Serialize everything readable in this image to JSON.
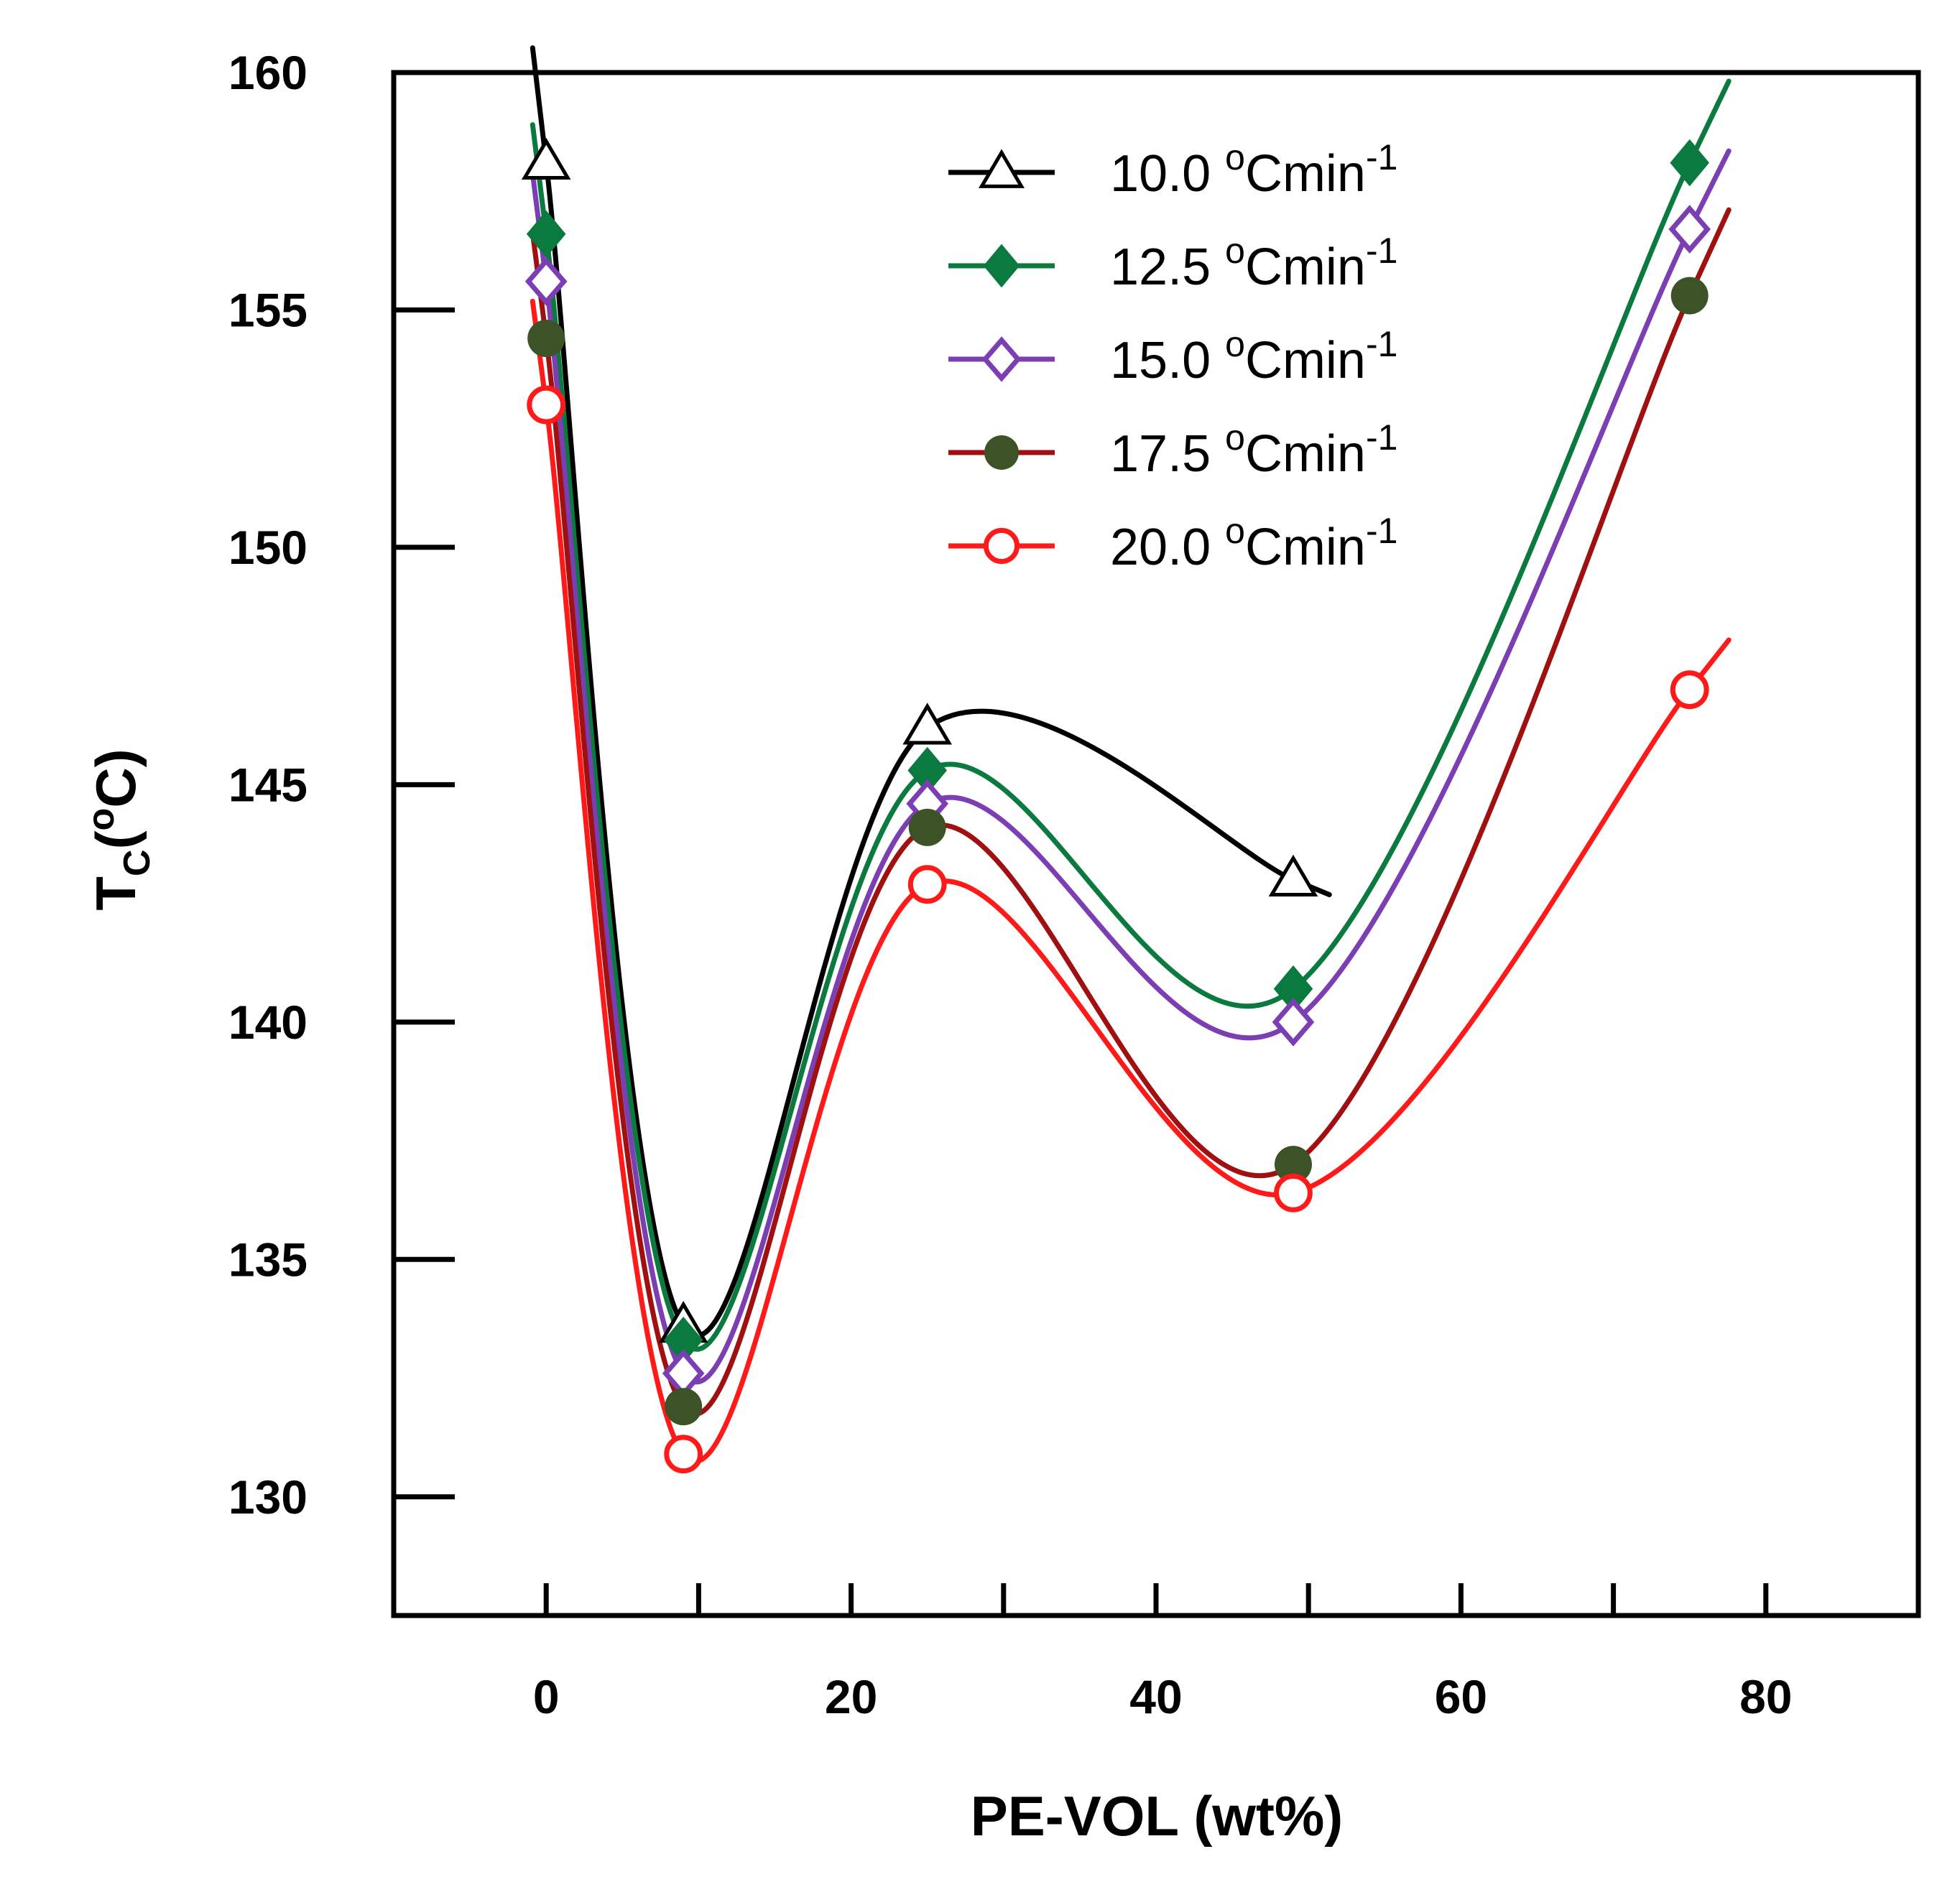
{
  "chart_data": {
    "type": "line",
    "xlabel": "PE-VOL (wt%)",
    "ylabel": {
      "main": "T",
      "sub": "C",
      "open": "(",
      "sup": "o",
      "close": "C)"
    },
    "xlim": [
      -10,
      90
    ],
    "ylim": [
      127.5,
      160
    ],
    "xticks": [
      0,
      20,
      40,
      60,
      80
    ],
    "xticks_minor": [
      10,
      30,
      50,
      70
    ],
    "yticks": [
      130,
      135,
      140,
      145,
      150,
      155,
      160
    ],
    "legend_position": "top-right",
    "legend_unit_sup": "o",
    "legend_unit_text": "Cmin",
    "legend_unit_exp": "-1",
    "series": [
      {
        "name": "10.0",
        "marker": "open-triangle",
        "color": "#000000",
        "line_color": "#000000",
        "x": [
          0,
          9,
          25,
          49
        ],
        "values": [
          158.1,
          133.6,
          146.2,
          143.0
        ]
      },
      {
        "name": "12.5",
        "marker": "filled-diamond",
        "color": "#0a7a3e",
        "line_color": "#0a7a3e",
        "x": [
          0,
          9,
          25,
          49,
          75
        ],
        "values": [
          156.6,
          133.3,
          145.3,
          140.7,
          158.1
        ]
      },
      {
        "name": "15.0",
        "marker": "open-diamond",
        "color": "#7b3fb3",
        "line_color": "#7b3fb3",
        "x": [
          0,
          9,
          25,
          49,
          75
        ],
        "values": [
          155.6,
          132.6,
          144.6,
          140.0,
          156.7
        ]
      },
      {
        "name": "17.5",
        "marker": "filled-circle",
        "color": "#3d5226",
        "line_color": "#a01010",
        "x": [
          0,
          9,
          25,
          49,
          75
        ],
        "values": [
          154.4,
          131.9,
          144.1,
          137.0,
          155.3
        ]
      },
      {
        "name": "20.0",
        "marker": "open-circle",
        "color": "#ff1a1a",
        "line_color": "#ff1a1a",
        "x": [
          0,
          9,
          25,
          49,
          75
        ],
        "values": [
          153.0,
          130.9,
          142.9,
          136.4,
          147.0
        ]
      }
    ]
  }
}
